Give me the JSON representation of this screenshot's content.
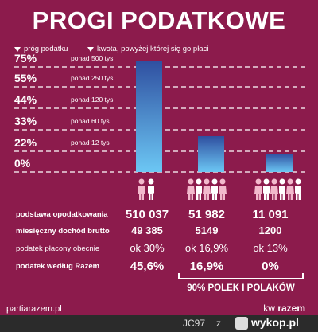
{
  "title": "PROGI PODATKOWE",
  "legend": {
    "threshold": "próg podatku",
    "amount": "kwota, powyżej której się go płaci"
  },
  "colors": {
    "background": "#8c1b4c",
    "bar_dark": "#2f4fa0",
    "bar_light": "#6cc7f4",
    "female_icon": "#f2b9cc",
    "male_icon": "#ffffff"
  },
  "chart_data": {
    "type": "bar",
    "rate_levels": [
      "75%",
      "55%",
      "44%",
      "33%",
      "22%",
      "0%"
    ],
    "thresholds": [
      "ponad 500 tys",
      "ponad 250 tys",
      "ponad 120 tys",
      "ponad 60 tys",
      "ponad 12 tys",
      ""
    ],
    "bars": [
      {
        "rate": 45.6
      },
      {
        "rate": 16.9
      },
      {
        "rate": 0
      }
    ]
  },
  "table": {
    "rows": [
      {
        "label": "podstawa opodatkowania",
        "values": [
          "510 037",
          "51 982",
          "11 091"
        ],
        "style": "big"
      },
      {
        "label": "miesięczny dochód brutto",
        "values": [
          "49 385",
          "5149",
          "1200"
        ],
        "style": "semi"
      },
      {
        "label": "podatek płacony obecnie",
        "values": [
          "ok 30%",
          "ok 16,9%",
          "ok 13%"
        ],
        "style": "mid"
      },
      {
        "label": "podatek według Razem",
        "values": [
          "45,6%",
          "16,9%",
          "0%"
        ],
        "style": "big"
      }
    ]
  },
  "group_label": "90% POLEK I POLAKÓW",
  "site": "partiarazem.pl",
  "brand": {
    "prefix": "kw",
    "name": "razem"
  },
  "footer": {
    "user": "JC97",
    "sep": "z",
    "site": "wykop.pl"
  }
}
